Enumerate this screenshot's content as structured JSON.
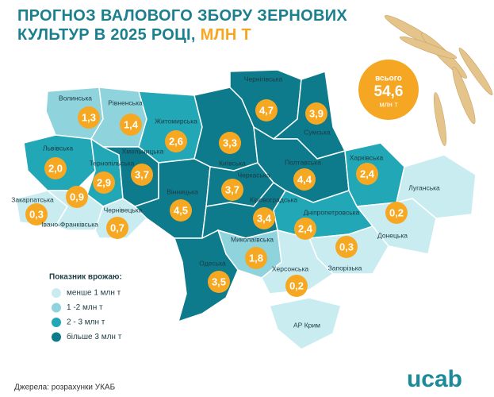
{
  "title": "ПРОГНОЗ ВАЛОВОГО ЗБОРУ ЗЕРНОВИХ КУЛЬТУР В 2025 РОЦІ,",
  "title_unit": "МЛН Т",
  "total": {
    "label": "всього",
    "value": 54.6,
    "value_label": "54,6",
    "unit": "млн т"
  },
  "legend": {
    "title": "Показник врожаю:",
    "items": [
      {
        "name": "менше 1 млн т",
        "color": "#c9ecf1"
      },
      {
        "name": "1 -2 млн т",
        "color": "#8fd3dc"
      },
      {
        "name": "2 - 3 млн т",
        "color": "#22a7b6"
      },
      {
        "name": "більше 3 млн т",
        "color": "#0d7b8c"
      }
    ]
  },
  "regions": [
    {
      "name": "Волинська",
      "value": 1.3,
      "value_label": "1,3",
      "color": "#8fd3dc"
    },
    {
      "name": "Рівненська",
      "value": 1.4,
      "value_label": "1,4",
      "color": "#8fd3dc"
    },
    {
      "name": "Житомирська",
      "value": 2.6,
      "value_label": "2,6",
      "color": "#22a7b6"
    },
    {
      "name": "Київська",
      "value": 3.3,
      "value_label": "3,3",
      "color": "#0d7b8c"
    },
    {
      "name": "Чернігівська",
      "value": 4.7,
      "value_label": "4,7",
      "color": "#0d7b8c"
    },
    {
      "name": "Сумська",
      "value": 3.9,
      "value_label": "3,9",
      "color": "#0d7b8c"
    },
    {
      "name": "Львівська",
      "value": 2.0,
      "value_label": "2,0",
      "color": "#22a7b6"
    },
    {
      "name": "Тернопільська",
      "value": 2.9,
      "value_label": "2,9",
      "color": "#22a7b6"
    },
    {
      "name": "Хмельницька",
      "value": 3.7,
      "value_label": "3,7",
      "color": "#0d7b8c"
    },
    {
      "name": "Закарпатська",
      "value": 0.3,
      "value_label": "0,3",
      "color": "#c9ecf1"
    },
    {
      "name": "Івано-Франківська",
      "value": 0.9,
      "value_label": "0,9",
      "color": "#c9ecf1"
    },
    {
      "name": "Чернівецька",
      "value": 0.7,
      "value_label": "0,7",
      "color": "#c9ecf1"
    },
    {
      "name": "Вінницька",
      "value": 4.5,
      "value_label": "4,5",
      "color": "#0d7b8c"
    },
    {
      "name": "Черкаська",
      "value": 3.7,
      "value_label": "3,7",
      "color": "#0d7b8c"
    },
    {
      "name": "Полтавська",
      "value": 4.4,
      "value_label": "4,4",
      "color": "#0d7b8c"
    },
    {
      "name": "Харківська",
      "value": 2.4,
      "value_label": "2,4",
      "color": "#22a7b6"
    },
    {
      "name": "Луганська",
      "color": "#c9ecf1"
    },
    {
      "name": "Донецька",
      "value": 0.2,
      "value_label": "0,2",
      "color": "#c9ecf1"
    },
    {
      "name": "Дніпропетровська",
      "value": 2.4,
      "value_label": "2,4",
      "color": "#22a7b6"
    },
    {
      "name": "Кіровоградська",
      "value": 3.4,
      "value_label": "3,4",
      "color": "#0d7b8c"
    },
    {
      "name": "Запорізька",
      "value": 0.3,
      "value_label": "0,3",
      "color": "#c9ecf1"
    },
    {
      "name": "Миколаївська",
      "value": 1.8,
      "value_label": "1,8",
      "color": "#8fd3dc"
    },
    {
      "name": "Одеська",
      "value": 3.5,
      "value_label": "3,5",
      "color": "#0d7b8c"
    },
    {
      "name": "Херсонська",
      "value": 0.2,
      "value_label": "0,2",
      "color": "#c9ecf1"
    },
    {
      "name": "АР Крим",
      "color": "#c9ecf1"
    }
  ],
  "source": "Джерела: розрахунки УКАБ",
  "logo": "ucab"
}
